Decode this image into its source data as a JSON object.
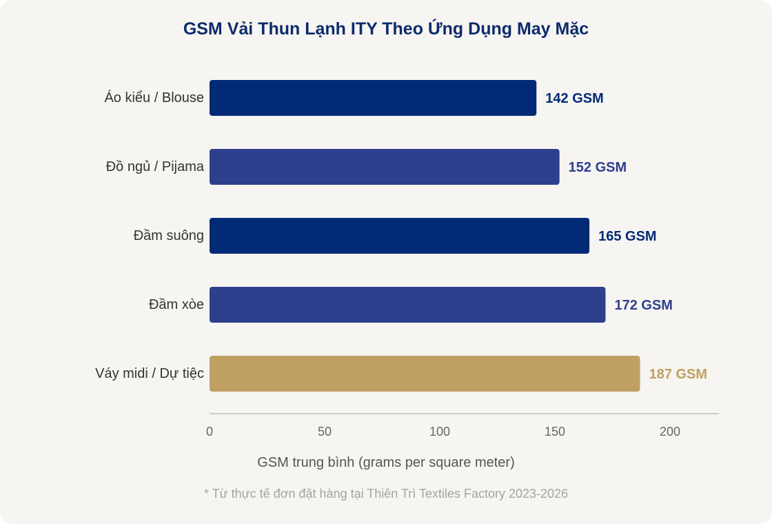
{
  "chart_data": {
    "type": "bar",
    "orientation": "horizontal",
    "title": "GSM Vải Thun Lạnh ITY Theo Ứng Dụng May Mặc",
    "xlabel": "GSM trung bình (grams per square meter)",
    "ylabel": "",
    "categories": [
      "Áo kiểu / Blouse",
      "Đồ ngủ / Pijama",
      "Đầm suông",
      "Đầm xòe",
      "Váy midi / Dự tiệc"
    ],
    "values": [
      142,
      152,
      165,
      172,
      187
    ],
    "value_labels": [
      "142 GSM",
      "152 GSM",
      "165 GSM",
      "172 GSM",
      "187 GSM"
    ],
    "colors": [
      "#002a75",
      "#2e3f8e",
      "#002a75",
      "#2e3f8e",
      "#c0a062"
    ],
    "xlim": [
      0,
      220
    ],
    "xticks": [
      0,
      50,
      100,
      150,
      200
    ],
    "grid": false,
    "footnote": "* Từ thực tế đơn đặt hàng tại Thiên Trì Textiles Factory 2023-2026"
  }
}
